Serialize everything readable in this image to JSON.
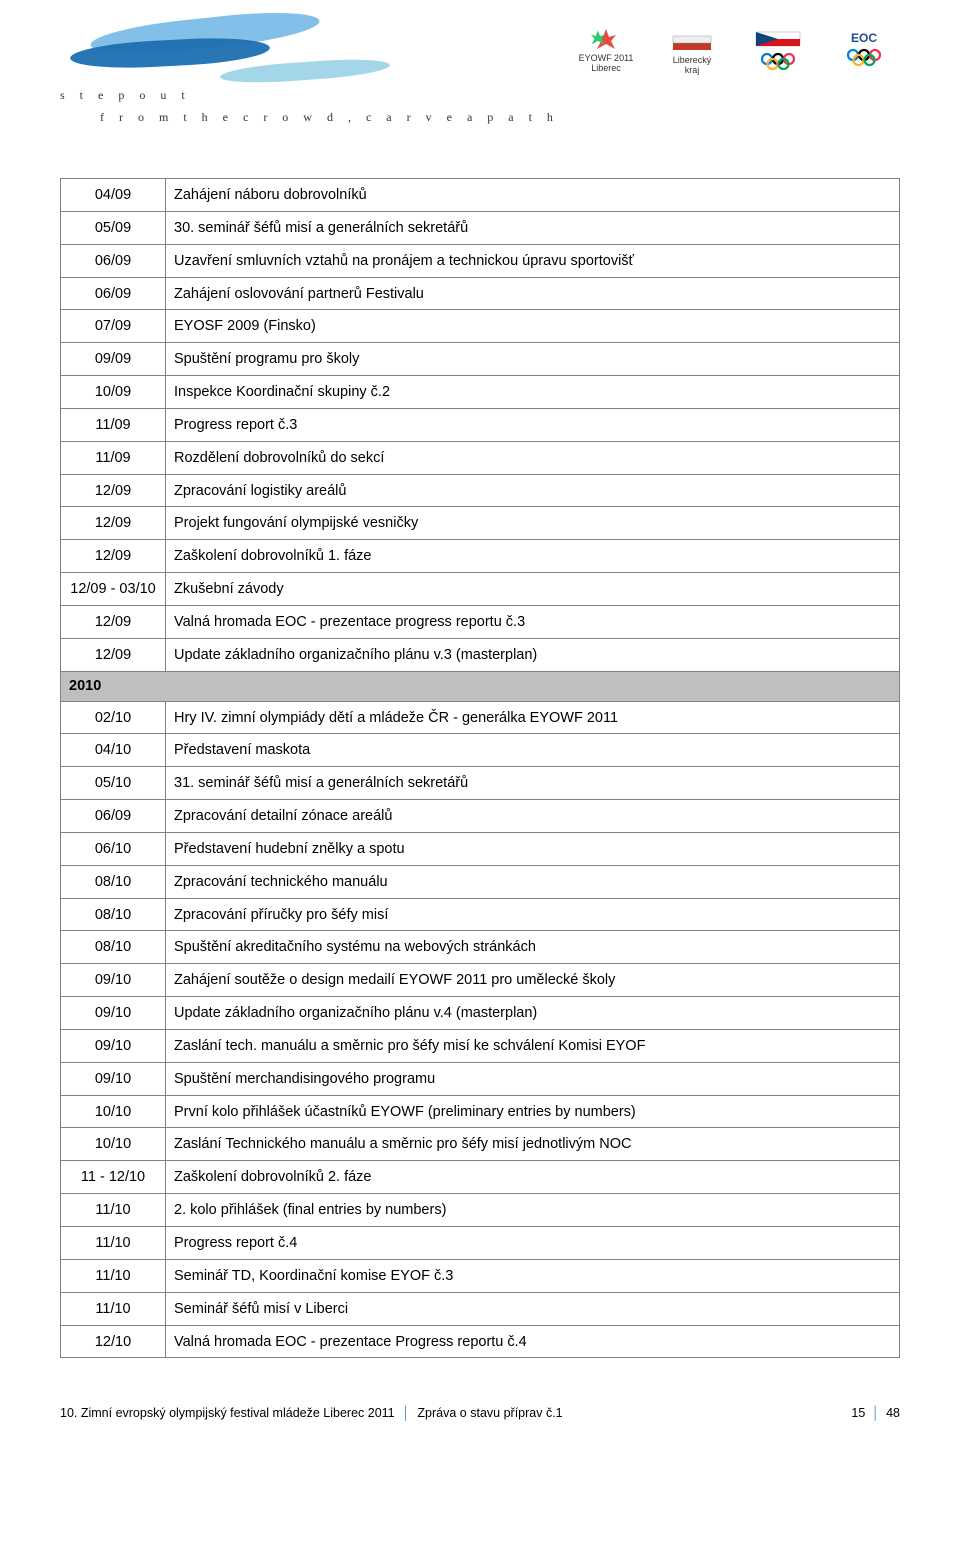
{
  "header": {
    "slogan_line1": "s t e p   o u t",
    "slogan_line2": "f r o m   t h e   c r o w d ,   c a r v e   a   p a t h",
    "logos": {
      "eyowf": "EYOWF 2011",
      "eyowf_sub": "Liberec",
      "kraj1": "Liberecký",
      "kraj2": "kraj"
    }
  },
  "colors": {
    "border": "#808080",
    "year_bg": "#bfbfbf",
    "brush_light": "#7bbde8",
    "brush_dark": "#1e6fb0",
    "brush_pale": "#9fd4e8",
    "accent": "#4a8fc7"
  },
  "rows": [
    {
      "date": "04/09",
      "text": "Zahájení náboru dobrovolníků"
    },
    {
      "date": "05/09",
      "text": "30. seminář šéfů misí a generálních sekretářů"
    },
    {
      "date": "06/09",
      "text": "Uzavření smluvních vztahů na pronájem a technickou úpravu sportovišť"
    },
    {
      "date": "06/09",
      "text": "Zahájení oslovování partnerů Festivalu"
    },
    {
      "date": "07/09",
      "text": "EYOSF 2009 (Finsko)"
    },
    {
      "date": "09/09",
      "text": "Spuštění programu pro školy"
    },
    {
      "date": "10/09",
      "text": "Inspekce Koordinační skupiny č.2"
    },
    {
      "date": "11/09",
      "text": "Progress report č.3"
    },
    {
      "date": "11/09",
      "text": "Rozdělení dobrovolníků do sekcí"
    },
    {
      "date": "12/09",
      "text": "Zpracování logistiky areálů"
    },
    {
      "date": "12/09",
      "text": "Projekt fungování olympijské vesničky"
    },
    {
      "date": "12/09",
      "text": "Zaškolení dobrovolníků 1. fáze"
    },
    {
      "date": "12/09 - 03/10",
      "text": "Zkušební závody"
    },
    {
      "date": "12/09",
      "text": "Valná hromada EOC - prezentace progress reportu č.3"
    },
    {
      "date": "12/09",
      "text": "Update základního organizačního plánu v.3 (masterplan)"
    },
    {
      "year": "2010"
    },
    {
      "date": "02/10",
      "text": "Hry IV. zimní olympiády dětí a mládeže ČR - generálka EYOWF 2011"
    },
    {
      "date": "04/10",
      "text": "Představení maskota"
    },
    {
      "date": "05/10",
      "text": "31. seminář šéfů misí a generálních sekretářů"
    },
    {
      "date": "06/09",
      "text": "Zpracování detailní zónace areálů"
    },
    {
      "date": "06/10",
      "text": "Představení hudební znělky a spotu"
    },
    {
      "date": "08/10",
      "text": "Zpracování technického manuálu"
    },
    {
      "date": "08/10",
      "text": "Zpracování příručky pro šéfy misí"
    },
    {
      "date": "08/10",
      "text": "Spuštění akreditačního systému na webových stránkách"
    },
    {
      "date": "09/10",
      "text": "Zahájení soutěže o design medailí EYOWF 2011 pro umělecké školy"
    },
    {
      "date": "09/10",
      "text": "Update základního organizačního plánu v.4 (masterplan)"
    },
    {
      "date": "09/10",
      "text": "Zaslání tech. manuálu a směrnic pro šéfy misí ke schválení Komisi EYOF"
    },
    {
      "date": "09/10",
      "text": "Spuštění merchandisingového programu"
    },
    {
      "date": "10/10",
      "text": "První kolo přihlášek účastníků EYOWF (preliminary entries by numbers)"
    },
    {
      "date": "10/10",
      "text": "Zaslání Technického manuálu a směrnic pro šéfy misí jednotlivým NOC"
    },
    {
      "date": "11 - 12/10",
      "text": "Zaškolení dobrovolníků 2. fáze"
    },
    {
      "date": "11/10",
      "text": "2. kolo přihlášek (final entries by numbers)"
    },
    {
      "date": "11/10",
      "text": "Progress report č.4"
    },
    {
      "date": "11/10",
      "text": "Seminář TD, Koordinační komise EYOF č.3"
    },
    {
      "date": "11/10",
      "text": "Seminář šéfů misí v Liberci"
    },
    {
      "date": "12/10",
      "text": "Valná hromada EOC - prezentace Progress reportu č.4"
    }
  ],
  "footer": {
    "left1": "10. Zimní evropský olympijský festival mládeže Liberec 2011",
    "left2": "Zpráva o stavu příprav č.1",
    "page_current": "15",
    "page_total": "48"
  }
}
